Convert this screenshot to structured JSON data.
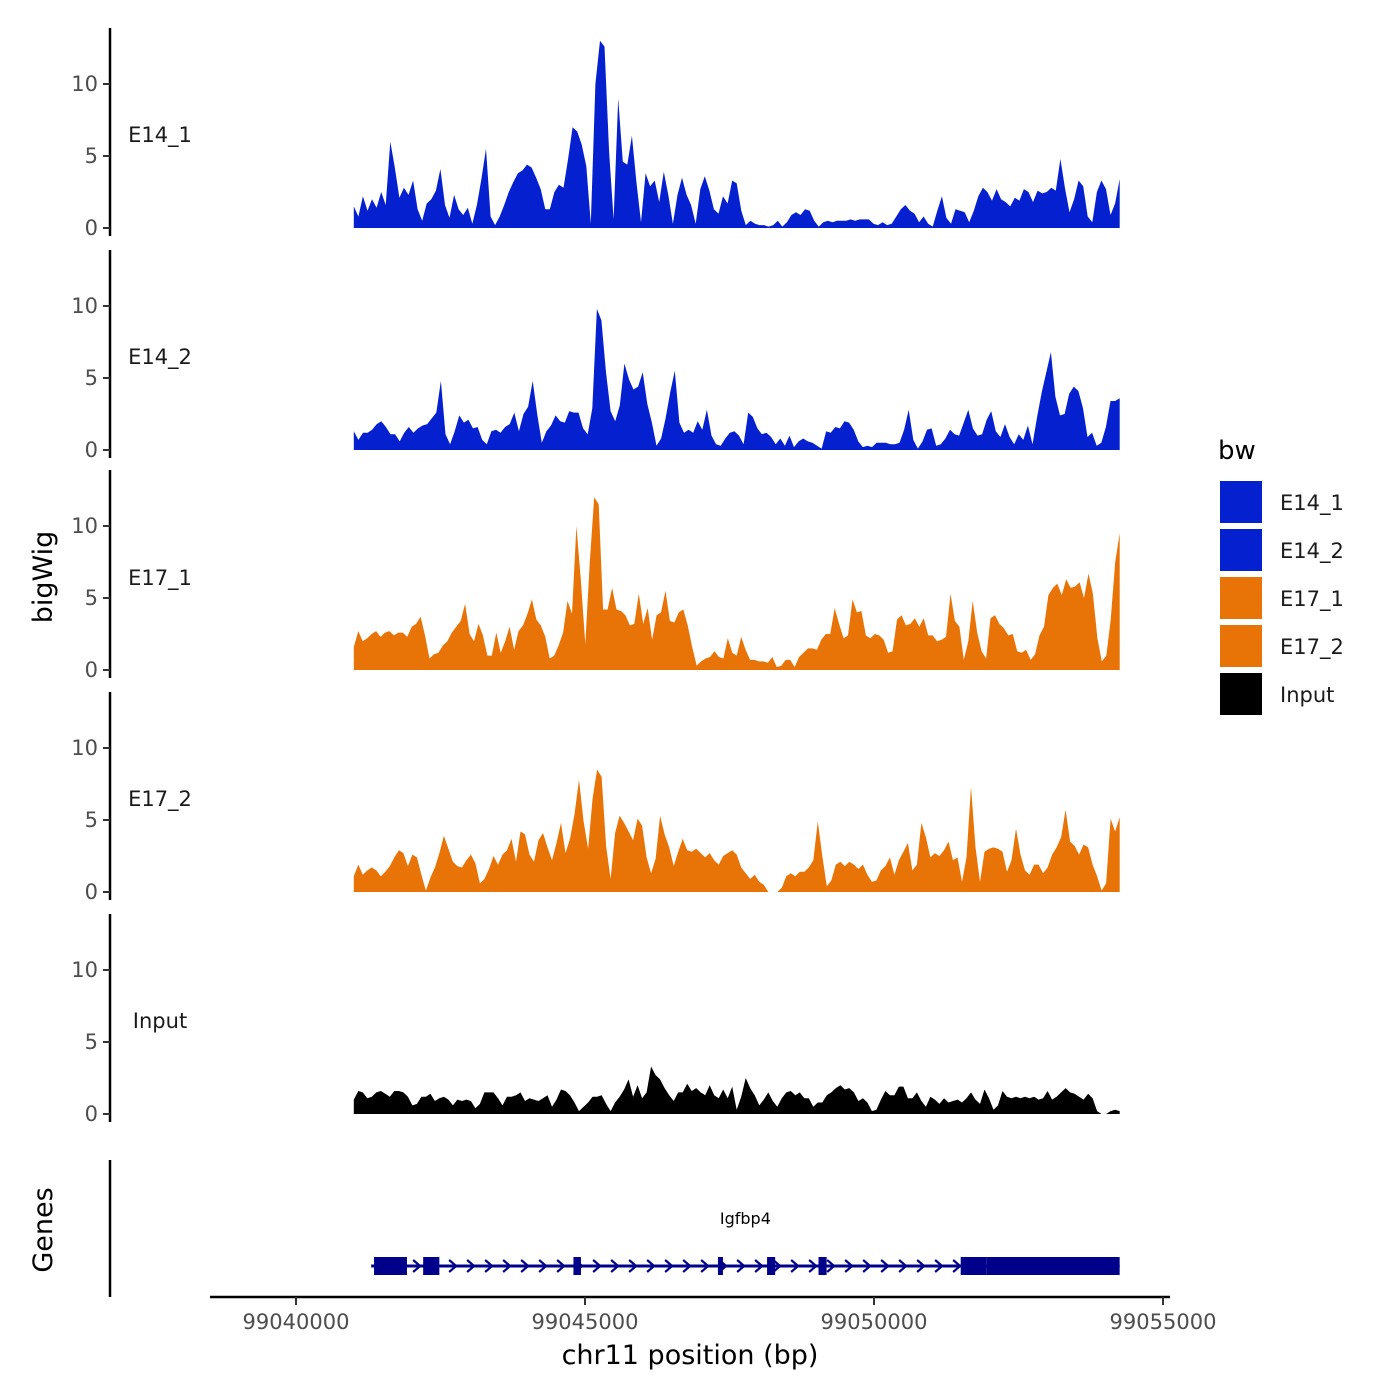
{
  "chart_data": {
    "type": "area",
    "title": "",
    "ylabel": "bigWig",
    "xlabel": "chr11 position (bp)",
    "chromosome": "chr11",
    "xlim": [
      99038500,
      99055000
    ],
    "data_start": 99041000,
    "data_end": 99054250,
    "x_ticks": [
      99040000,
      99045000,
      99050000,
      99055000
    ],
    "x_tick_labels": [
      "99040000",
      "99045000",
      "99050000",
      "99055000"
    ],
    "y_ticks": [
      0,
      5,
      10
    ],
    "y_tick_labels": [
      "0",
      "5",
      "10"
    ],
    "ylim": [
      0,
      13.5
    ],
    "grid": false,
    "series": [
      {
        "name": "E14_1",
        "color": "#0521CF",
        "values": [
          1.5,
          0.8,
          2.2,
          1.2,
          2.0,
          1.4,
          2.5,
          1.6,
          6.0,
          4.2,
          2.1,
          2.8,
          2.3,
          3.3,
          1.3,
          0.5,
          1.7,
          2.0,
          2.6,
          4.1,
          1.6,
          0.7,
          2.3,
          1.3,
          0.9,
          1.4,
          0.3,
          1.6,
          3.4,
          5.5,
          0.8,
          0.2,
          0.8,
          1.6,
          2.5,
          3.2,
          3.8,
          4.0,
          4.4,
          4.2,
          3.5,
          2.7,
          1.3,
          1.3,
          2.5,
          3.0,
          2.8,
          4.8,
          7.0,
          6.7,
          5.8,
          4.3,
          0.3,
          10.0,
          13.0,
          12.6,
          5.3,
          0.6,
          9.0,
          4.6,
          4.4,
          6.4,
          3.2,
          0.4,
          3.8,
          2.9,
          3.3,
          1.8,
          3.9,
          2.3,
          0.3,
          2.3,
          3.5,
          2.3,
          1.6,
          0.3,
          2.7,
          3.6,
          2.6,
          1.3,
          1.0,
          2.2,
          1.7,
          3.3,
          3.1,
          1.2,
          0.2,
          0.5,
          0.3,
          0.2,
          0.2,
          0.1,
          0.2,
          0.5,
          0.1,
          0.4,
          0.9,
          1.1,
          0.9,
          1.3,
          1.2,
          0.5,
          0.1,
          0.4,
          0.5,
          0.4,
          0.5,
          0.5,
          0.5,
          0.6,
          0.5,
          0.6,
          0.6,
          0.6,
          0.3,
          0.2,
          0.4,
          0.2,
          0.3,
          0.8,
          1.3,
          1.6,
          1.2,
          1.0,
          0.4,
          0.8,
          0.3,
          0.1,
          1.2,
          2.2,
          0.7,
          0.3,
          1.3,
          1.2,
          1.1,
          0.4,
          1.2,
          2.2,
          2.8,
          2.5,
          1.9,
          2.7,
          2.0,
          1.8,
          1.5,
          2.1,
          1.9,
          2.7,
          2.5,
          1.8,
          2.6,
          2.4,
          2.5,
          2.8,
          2.6,
          4.8,
          2.8,
          1.1,
          2.0,
          3.3,
          2.9,
          0.8,
          0.4,
          2.5,
          3.3,
          2.7,
          0.9,
          1.7,
          3.4
        ]
      },
      {
        "name": "E14_2",
        "color": "#0521CF",
        "values": [
          1.3,
          0.7,
          1.2,
          1.2,
          1.4,
          1.8,
          2.0,
          1.6,
          1.1,
          1.1,
          0.6,
          1.2,
          1.6,
          1.2,
          1.5,
          1.7,
          1.8,
          2.2,
          2.6,
          4.8,
          1.1,
          0.4,
          1.3,
          2.4,
          1.9,
          2.1,
          1.5,
          1.6,
          0.7,
          0.4,
          1.3,
          1.4,
          1.2,
          1.6,
          1.8,
          2.6,
          1.3,
          2.5,
          3.0,
          4.8,
          2.5,
          0.5,
          1.3,
          1.7,
          2.4,
          2.0,
          1.9,
          2.7,
          2.6,
          2.6,
          1.5,
          1.1,
          2.9,
          9.8,
          9.0,
          5.4,
          2.7,
          2.0,
          3.1,
          6.0,
          4.9,
          4.2,
          4.4,
          5.4,
          3.2,
          1.9,
          0.3,
          0.8,
          2.2,
          4.0,
          5.5,
          1.9,
          1.2,
          1.4,
          1.2,
          2.0,
          1.4,
          2.8,
          1.0,
          0.4,
          0.3,
          0.8,
          1.2,
          1.3,
          1.0,
          0.4,
          2.6,
          2.3,
          1.5,
          1.1,
          1.2,
          0.9,
          0.4,
          0.8,
          0.3,
          1.0,
          0.2,
          0.6,
          0.8,
          0.6,
          0.5,
          0.3,
          0.1,
          1.3,
          1.2,
          1.6,
          1.5,
          2.0,
          1.9,
          1.4,
          0.6,
          0.2,
          0.3,
          0.2,
          0.5,
          0.5,
          0.5,
          0.4,
          0.4,
          0.5,
          1.4,
          2.8,
          0.7,
          0.1,
          0.6,
          1.4,
          1.5,
          0.3,
          0.4,
          0.8,
          1.4,
          1.1,
          1.0,
          1.9,
          2.8,
          1.5,
          1.0,
          1.1,
          2.1,
          2.7,
          1.3,
          0.9,
          1.8,
          0.9,
          0.4,
          1.1,
          0.7,
          1.7,
          0.4,
          2.3,
          4.0,
          5.4,
          6.8,
          3.7,
          2.4,
          2.5,
          3.9,
          4.4,
          4.1,
          2.9,
          0.9,
          1.2,
          0.3,
          0.5,
          1.6,
          3.4,
          3.4,
          3.6
        ]
      },
      {
        "name": "E17_1",
        "color": "#E87306",
        "values": [
          1.6,
          2.7,
          2.0,
          2.2,
          2.5,
          2.7,
          2.3,
          2.6,
          2.7,
          2.4,
          2.6,
          2.6,
          2.3,
          3.0,
          3.2,
          3.7,
          2.4,
          0.8,
          1.1,
          1.2,
          1.7,
          2.0,
          2.6,
          3.0,
          3.4,
          4.6,
          2.5,
          2.0,
          3.2,
          2.4,
          1.0,
          1.0,
          2.6,
          1.2,
          2.0,
          3.0,
          1.4,
          2.7,
          3.1,
          3.9,
          4.9,
          3.5,
          3.1,
          2.3,
          0.8,
          1.0,
          1.7,
          2.6,
          4.8,
          3.9,
          10.0,
          6.2,
          1.8,
          7.5,
          12.0,
          11.5,
          4.2,
          4.2,
          5.7,
          4.2,
          4.1,
          3.8,
          3.1,
          3.2,
          5.3,
          3.2,
          4.3,
          2.1,
          3.8,
          4.0,
          5.5,
          3.4,
          3.3,
          4.0,
          4.2,
          3.1,
          1.6,
          0.3,
          0.6,
          0.8,
          0.9,
          1.3,
          0.9,
          0.8,
          2.2,
          1.2,
          1.0,
          2.3,
          1.4,
          0.7,
          0.7,
          0.6,
          0.6,
          0.5,
          0.9,
          0.2,
          0.3,
          0.7,
          0.7,
          0.2,
          0.9,
          1.2,
          1.5,
          1.5,
          1.4,
          2.1,
          2.5,
          2.5,
          4.3,
          3.2,
          2.2,
          2.4,
          4.9,
          4.0,
          4.1,
          2.4,
          2.2,
          2.5,
          2.4,
          2.1,
          1.2,
          1.3,
          3.5,
          3.8,
          3.1,
          3.2,
          3.6,
          3.0,
          3.6,
          2.4,
          2.4,
          2.0,
          2.1,
          2.3,
          5.3,
          3.4,
          3.0,
          0.7,
          2.0,
          4.8,
          2.6,
          1.3,
          0.8,
          3.6,
          3.8,
          3.2,
          2.9,
          2.4,
          2.5,
          1.3,
          1.2,
          1.4,
          0.7,
          1.1,
          2.4,
          3.0,
          5.2,
          5.7,
          6.0,
          5.2,
          6.3,
          5.7,
          5.8,
          6.1,
          5.0,
          6.7,
          5.3,
          2.2,
          0.6,
          1.0,
          3.5,
          7.5,
          9.5
        ]
      },
      {
        "name": "E17_2",
        "color": "#E87306",
        "values": [
          1.1,
          1.9,
          1.2,
          1.5,
          1.7,
          1.5,
          1.1,
          1.4,
          1.8,
          2.4,
          2.9,
          2.7,
          1.8,
          2.6,
          2.4,
          1.2,
          0.1,
          1.0,
          1.7,
          2.7,
          3.9,
          3.0,
          2.1,
          1.8,
          1.7,
          2.2,
          2.6,
          2.0,
          0.6,
          0.9,
          1.6,
          2.5,
          1.9,
          2.6,
          2.9,
          3.7,
          2.1,
          4.2,
          4.0,
          2.6,
          2.1,
          3.6,
          4.1,
          3.1,
          2.2,
          3.4,
          4.8,
          2.7,
          3.7,
          5.4,
          7.8,
          4.9,
          3.0,
          6.5,
          8.5,
          8.0,
          3.2,
          0.9,
          4.1,
          5.3,
          4.8,
          4.2,
          3.6,
          5.1,
          4.6,
          2.4,
          1.3,
          2.3,
          5.3,
          4.0,
          3.1,
          1.8,
          2.8,
          3.7,
          2.9,
          2.8,
          3.0,
          2.7,
          2.4,
          2.7,
          2.2,
          1.9,
          2.5,
          2.7,
          2.9,
          2.6,
          1.7,
          1.3,
          0.9,
          1.2,
          0.7,
          0.5,
          0.0,
          0.0,
          0.0,
          0.3,
          1.1,
          1.3,
          1.1,
          1.4,
          1.4,
          1.7,
          2.2,
          4.9,
          2.5,
          0.4,
          0.8,
          1.9,
          2.1,
          1.8,
          2.1,
          1.9,
          1.6,
          1.9,
          1.2,
          0.7,
          0.8,
          1.5,
          1.8,
          2.4,
          1.2,
          2.2,
          2.8,
          3.4,
          1.5,
          1.9,
          4.8,
          3.8,
          2.4,
          2.7,
          2.5,
          2.9,
          3.5,
          2.2,
          2.4,
          0.7,
          2.4,
          7.3,
          3.1,
          0.7,
          2.8,
          3.0,
          3.1,
          3.0,
          2.8,
          1.4,
          2.2,
          4.4,
          2.6,
          1.5,
          1.2,
          1.9,
          1.9,
          1.3,
          1.7,
          2.6,
          3.1,
          3.8,
          5.7,
          3.5,
          3.2,
          2.6,
          3.3,
          3.1,
          1.9,
          1.1,
          0.1,
          0.6,
          5.1,
          4.2,
          5.2
        ]
      },
      {
        "name": "Input",
        "color": "#000000",
        "values": [
          1.0,
          1.6,
          1.5,
          1.1,
          1.2,
          1.5,
          1.6,
          1.4,
          1.2,
          1.6,
          1.6,
          1.5,
          1.2,
          0.6,
          0.7,
          1.2,
          1.2,
          1.4,
          0.9,
          1.1,
          1.2,
          1.0,
          0.6,
          1.0,
          0.9,
          1.0,
          0.9,
          0.4,
          0.7,
          1.5,
          1.5,
          1.5,
          1.1,
          0.6,
          1.2,
          1.2,
          1.3,
          1.5,
          0.9,
          1.1,
          1.0,
          0.9,
          1.1,
          1.3,
          0.5,
          1.0,
          1.7,
          1.6,
          1.3,
          0.8,
          0.2,
          0.5,
          0.8,
          1.2,
          1.2,
          1.3,
          0.7,
          0.2,
          0.8,
          1.2,
          1.7,
          2.4,
          1.2,
          2.0,
          1.1,
          1.5,
          3.3,
          2.7,
          2.4,
          1.8,
          1.3,
          0.9,
          1.5,
          1.5,
          2.1,
          1.6,
          1.8,
          1.5,
          1.3,
          2.0,
          1.3,
          1.1,
          1.7,
          1.1,
          1.9,
          0.3,
          1.2,
          2.5,
          1.8,
          1.3,
          0.6,
          1.0,
          1.5,
          0.9,
          0.5,
          1.1,
          1.5,
          1.6,
          1.3,
          1.5,
          1.1,
          1.1,
          0.5,
          0.8,
          0.8,
          1.3,
          1.5,
          1.8,
          2.0,
          1.7,
          1.8,
          1.5,
          0.9,
          1.1,
          0.8,
          0.2,
          0.3,
          1.0,
          1.6,
          1.3,
          1.3,
          1.9,
          1.9,
          1.1,
          1.1,
          1.5,
          0.9,
          0.5,
          1.2,
          1.0,
          0.7,
          1.1,
          0.8,
          0.9,
          1.0,
          0.8,
          1.1,
          1.5,
          1.0,
          0.7,
          1.7,
          1.1,
          0.3,
          0.6,
          1.6,
          1.2,
          1.1,
          1.2,
          1.1,
          1.2,
          1.1,
          1.2,
          1.0,
          1.1,
          1.6,
          1.0,
          1.2,
          1.5,
          1.8,
          1.5,
          1.4,
          1.2,
          1.0,
          1.4,
          1.1,
          0.2,
          0.0,
          0.0,
          0.2,
          0.3,
          0.2
        ]
      }
    ],
    "legend": {
      "title": "bw",
      "position": "right",
      "entries": [
        {
          "label": "E14_1",
          "color": "#0521CF"
        },
        {
          "label": "E14_2",
          "color": "#0521CF"
        },
        {
          "label": "E17_1",
          "color": "#E87306"
        },
        {
          "label": "E17_2",
          "color": "#E87306"
        },
        {
          "label": "Input",
          "color": "#000000"
        }
      ]
    },
    "genes_track": {
      "ylabel": "Genes",
      "gene_name": "Igfbp4",
      "color": "#00008B",
      "strand": "+",
      "start": 99041300,
      "end": 99054250,
      "exons": [
        [
          99041350,
          99041920
        ],
        [
          99042200,
          99042480
        ],
        [
          99044800,
          99044930
        ],
        [
          99047300,
          99047380
        ],
        [
          99048150,
          99048290
        ],
        [
          99049040,
          99049180
        ],
        [
          99051500,
          99051950
        ]
      ],
      "utr_thick": [
        99051950,
        99054250
      ]
    }
  }
}
